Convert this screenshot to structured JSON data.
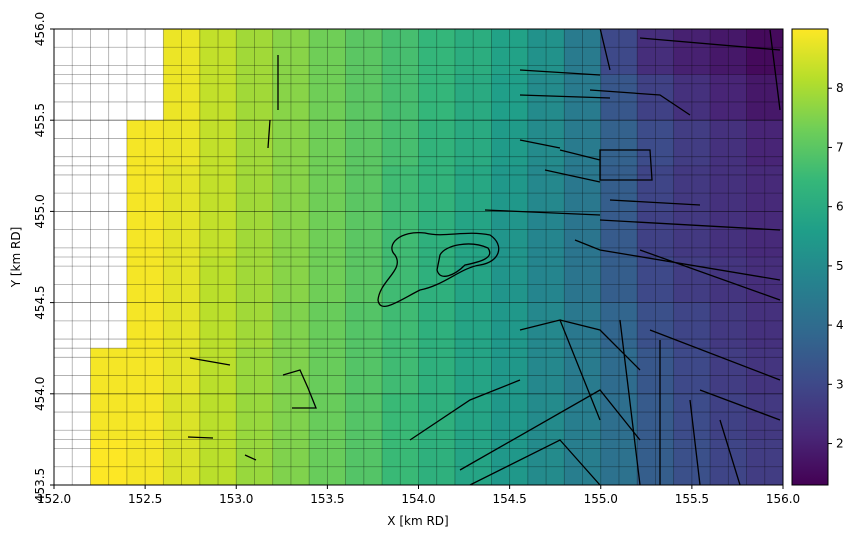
{
  "chart_data": {
    "type": "heatmap",
    "xlabel": "X [km RD]",
    "ylabel": "Y [km RD]",
    "x_edges": [
      152.0,
      152.2,
      152.4,
      152.6,
      152.8,
      153.0,
      153.2,
      153.4,
      153.6,
      153.8,
      154.0,
      154.2,
      154.4,
      154.6,
      154.8,
      155.0,
      155.2,
      155.4,
      155.6,
      155.8,
      156.0
    ],
    "y_edges": [
      456.0,
      455.75,
      455.5,
      455.25,
      455.0,
      454.75,
      454.5,
      454.25,
      454.0,
      453.75,
      453.5
    ],
    "z": [
      [
        null,
        null,
        null,
        8.8,
        8.3,
        7.9,
        7.6,
        7.3,
        7.0,
        6.7,
        6.4,
        6.1,
        5.7,
        5.2,
        4.5,
        3.0,
        2.3,
        2.0,
        1.8,
        1.5
      ],
      [
        null,
        null,
        null,
        8.8,
        8.3,
        7.9,
        7.6,
        7.3,
        7.0,
        6.7,
        6.4,
        6.0,
        5.6,
        5.0,
        4.5,
        3.4,
        2.8,
        2.4,
        2.1,
        1.8
      ],
      [
        null,
        null,
        8.9,
        8.8,
        8.3,
        7.9,
        7.6,
        7.3,
        7.0,
        6.7,
        6.3,
        6.0,
        5.5,
        5.0,
        4.5,
        3.7,
        3.1,
        2.7,
        2.4,
        2.1
      ],
      [
        null,
        null,
        8.9,
        8.7,
        8.3,
        7.9,
        7.6,
        7.3,
        7.0,
        6.6,
        6.3,
        5.9,
        5.4,
        4.9,
        4.4,
        3.6,
        2.9,
        2.6,
        2.4,
        2.2
      ],
      [
        null,
        null,
        8.9,
        8.7,
        8.3,
        7.9,
        7.6,
        7.3,
        7.0,
        6.6,
        6.2,
        5.8,
        5.3,
        4.8,
        4.3,
        3.5,
        2.8,
        2.6,
        2.4,
        2.2
      ],
      [
        null,
        null,
        8.9,
        8.7,
        8.2,
        7.9,
        7.6,
        7.3,
        7.0,
        6.6,
        6.2,
        5.8,
        5.3,
        4.8,
        4.3,
        3.6,
        3.0,
        2.7,
        2.5,
        2.3
      ],
      [
        null,
        null,
        8.9,
        8.7,
        8.2,
        7.9,
        7.5,
        7.2,
        6.9,
        6.6,
        6.2,
        5.8,
        5.4,
        4.9,
        4.4,
        3.8,
        3.2,
        2.9,
        2.6,
        2.4
      ],
      [
        null,
        8.9,
        8.9,
        8.7,
        8.2,
        7.8,
        7.5,
        7.2,
        6.9,
        6.6,
        6.2,
        5.8,
        5.4,
        4.9,
        4.5,
        4.0,
        3.4,
        3.0,
        2.7,
        2.5
      ],
      [
        null,
        8.9,
        8.9,
        8.6,
        8.2,
        7.8,
        7.5,
        7.2,
        6.9,
        6.5,
        6.2,
        5.8,
        5.4,
        5.0,
        4.6,
        4.1,
        3.5,
        3.1,
        2.8,
        2.6
      ],
      [
        null,
        9.0,
        8.9,
        8.6,
        8.2,
        7.8,
        7.5,
        7.2,
        6.9,
        6.5,
        6.2,
        5.8,
        5.4,
        5.0,
        4.6,
        4.2,
        3.6,
        3.2,
        2.9,
        2.7
      ]
    ],
    "xlim": [
      152.0,
      156.0
    ],
    "xticks": [
      {
        "value": 152,
        "label": "152.0"
      },
      152.5,
      {
        "value": 153,
        "label": "153.0"
      },
      153.5,
      {
        "value": 154,
        "label": "154.0"
      },
      154.5,
      {
        "value": 155,
        "label": "155.0"
      },
      155.5,
      {
        "value": 156,
        "label": "156.0"
      }
    ],
    "ylim": [
      453.5,
      456.0
    ],
    "yticks": [
      453.5,
      {
        "value": 454,
        "label": "454.0"
      },
      454.5,
      {
        "value": 455,
        "label": "455.0"
      },
      455.5,
      {
        "value": 456,
        "label": "456.0"
      }
    ],
    "colormap": "viridis",
    "zlim": [
      1.3,
      9.0
    ],
    "zticks": [
      2,
      3,
      4,
      5,
      6,
      7,
      8
    ]
  }
}
